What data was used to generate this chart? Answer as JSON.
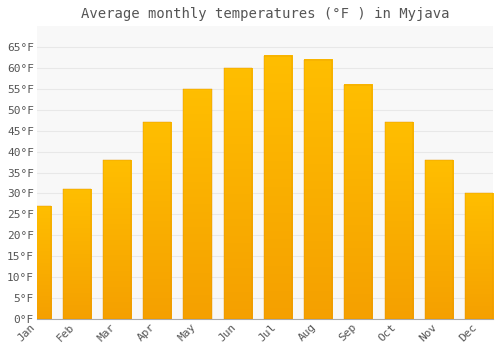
{
  "title": "Average monthly temperatures (°F ) in Myjava",
  "months": [
    "Jan",
    "Feb",
    "Mar",
    "Apr",
    "May",
    "Jun",
    "Jul",
    "Aug",
    "Sep",
    "Oct",
    "Nov",
    "Dec"
  ],
  "values": [
    27,
    31,
    38,
    47,
    55,
    60,
    63,
    62,
    56,
    47,
    38,
    30
  ],
  "bar_color_top": "#FFBE00",
  "bar_color_bottom": "#F5A000",
  "bar_edge_color": "#E09000",
  "background_color": "#FFFFFF",
  "plot_bg_color": "#F8F8F8",
  "grid_color": "#E8E8E8",
  "text_color": "#555555",
  "ylim": [
    0,
    70
  ],
  "yticks": [
    0,
    5,
    10,
    15,
    20,
    25,
    30,
    35,
    40,
    45,
    50,
    55,
    60,
    65
  ],
  "title_fontsize": 10,
  "tick_fontsize": 8,
  "font_family": "monospace",
  "bar_width": 0.7
}
